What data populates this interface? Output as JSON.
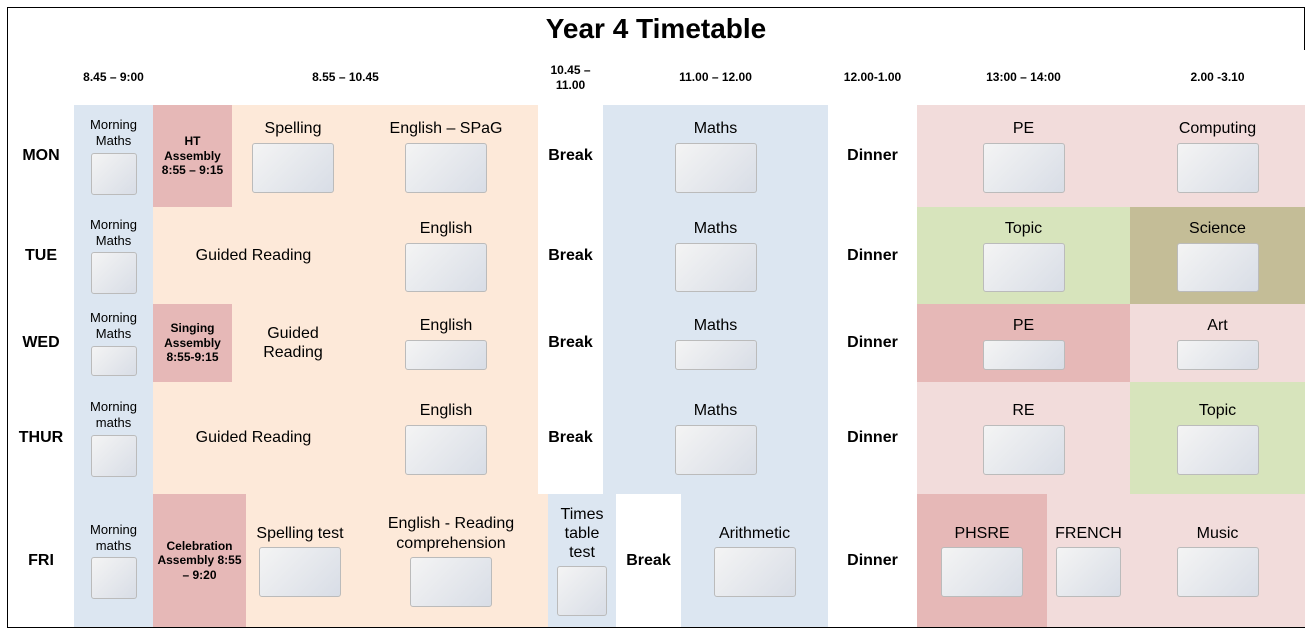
{
  "title": "Year 4 Timetable",
  "header": {
    "times": [
      "8.45 – 9:00",
      "8.55 – 10.45",
      "10.45 – 11.00",
      "11.00 – 12.00",
      "12.00-1.00",
      "13:00 – 14:00",
      "2.00 -3.10"
    ]
  },
  "rows": [
    {
      "day": "MON",
      "cells": [
        "Morning Maths",
        "HT Assembly 8:55 – 9:15",
        "Spelling",
        "English – SPaG",
        "Break",
        "Maths",
        "Dinner",
        "PE",
        "Computing"
      ]
    },
    {
      "day": "TUE",
      "cells": [
        "Morning Maths",
        "Guided Reading",
        "English",
        "Break",
        "Maths",
        "Dinner",
        "Topic",
        "Science"
      ]
    },
    {
      "day": "WED",
      "cells": [
        "Morning Maths",
        "Singing Assembly 8:55-9:15",
        "Guided Reading",
        "English",
        "Break",
        "Maths",
        "Dinner",
        "PE",
        "Art"
      ]
    },
    {
      "day": "THUR",
      "cells": [
        "Morning maths",
        "Guided Reading",
        "English",
        "Break",
        "Maths",
        "Dinner",
        "RE",
        "Topic"
      ]
    },
    {
      "day": "FRI",
      "cells": [
        "Morning maths",
        "Celebration Assembly 8:55 – 9:20",
        "Spelling test",
        "English - Reading comprehension",
        "Times table test",
        "Break",
        "Arithmetic",
        "Dinner",
        "PHSRE",
        "FRENCH",
        "Music"
      ]
    }
  ]
}
